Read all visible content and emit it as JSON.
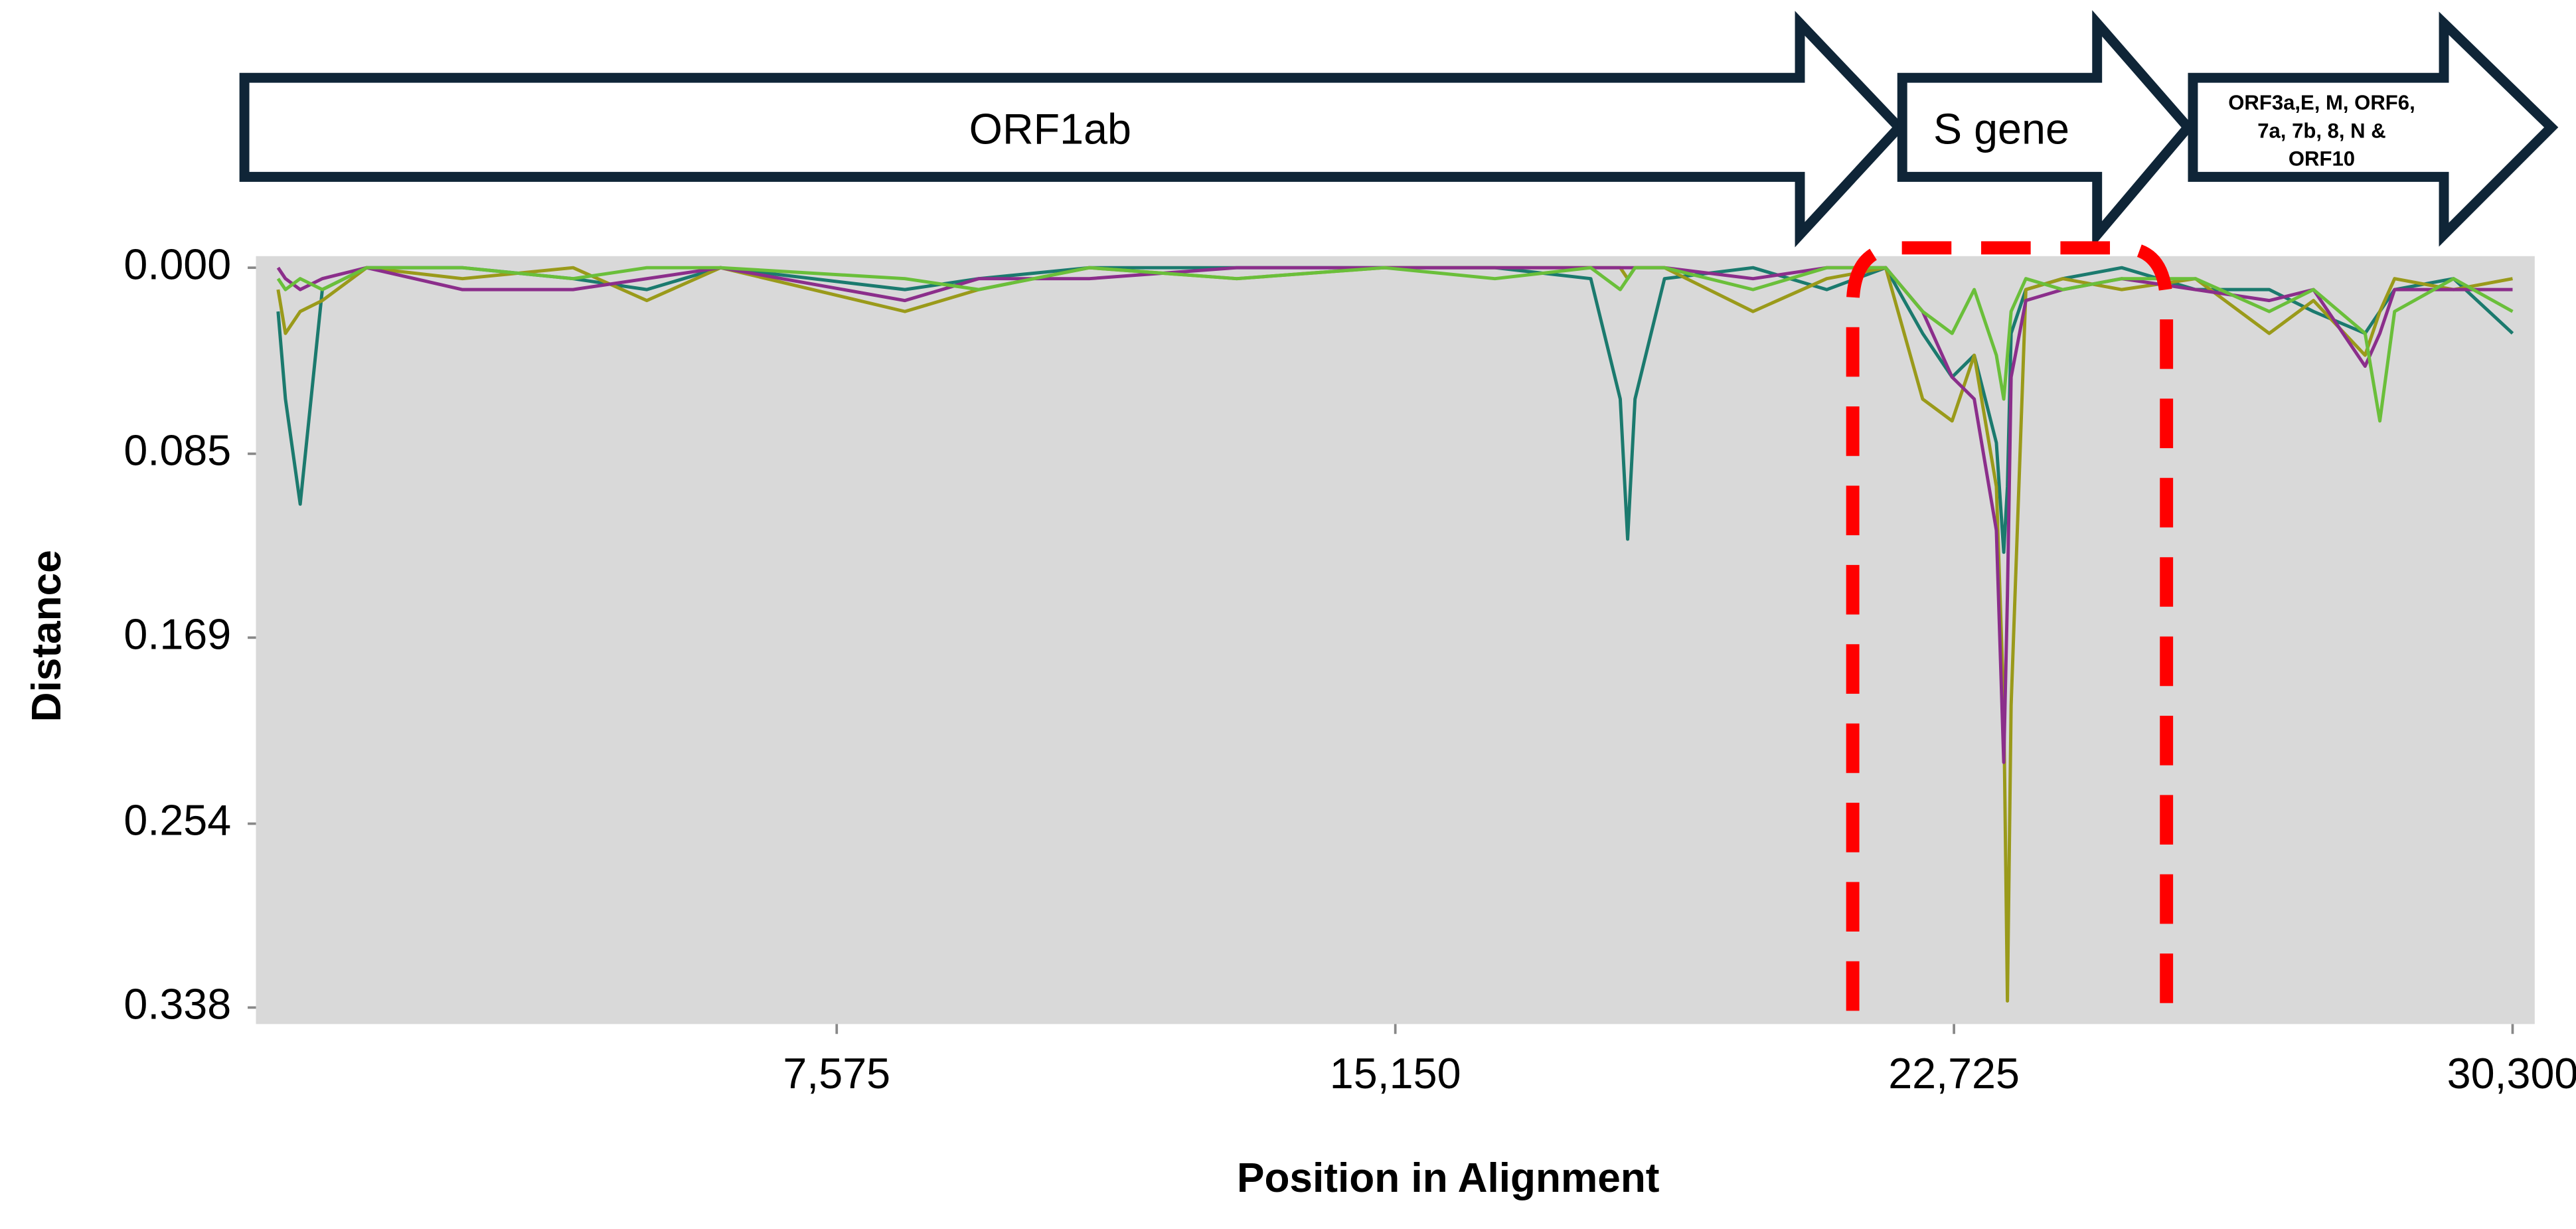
{
  "chart_data": {
    "type": "line",
    "y_axis_label": "Distance",
    "x_axis_label": "Position in Alignment",
    "genes": [
      {
        "label": "ORF1ab"
      },
      {
        "label": "S gene"
      },
      {
        "label_lines": [
          "ORF3a,E, M, ORF6,",
          "7a, 7b, 8, N &",
          "ORF10"
        ]
      }
    ],
    "xlim": [
      -300,
      30600
    ],
    "xticks": [
      {
        "value": 7575,
        "label": "7,575"
      },
      {
        "value": 15150,
        "label": "15,150"
      },
      {
        "value": 22725,
        "label": "22,725"
      },
      {
        "value": 30300,
        "label": "30,300"
      }
    ],
    "ylim": [
      0,
      0.338
    ],
    "y_inverted": true,
    "yticks": [
      {
        "value": 0,
        "label": "0.000"
      },
      0.085,
      0.169,
      0.254,
      0.338
    ],
    "grid": false,
    "x": [
      0,
      100,
      300,
      600,
      1200,
      2500,
      4000,
      5000,
      6000,
      8500,
      9500,
      11000,
      13000,
      15000,
      16500,
      17800,
      18200,
      18300,
      18400,
      18800,
      20000,
      21000,
      21800,
      22300,
      22700,
      23000,
      23300,
      23400,
      23450,
      23500,
      23700,
      24200,
      25000,
      26000,
      27000,
      27600,
      28300,
      28500,
      28700,
      29500,
      30300
    ],
    "series": [
      {
        "color": "#1b7a6e",
        "values": [
          0.02,
          0.06,
          0.108,
          0.01,
          0,
          0,
          0.005,
          0.01,
          0,
          0.01,
          0.005,
          0,
          0,
          0,
          0,
          0.005,
          0.06,
          0.124,
          0.06,
          0.005,
          0,
          0.01,
          0,
          0.03,
          0.05,
          0.04,
          0.08,
          0.13,
          0.1,
          0.03,
          0.01,
          0.005,
          0,
          0.01,
          0.01,
          0.02,
          0.03,
          0.02,
          0.01,
          0.005,
          0.03
        ]
      },
      {
        "color": "#9a9a1a",
        "values": [
          0.01,
          0.03,
          0.02,
          0.015,
          0,
          0.005,
          0,
          0.015,
          0,
          0.02,
          0.01,
          0,
          0.005,
          0,
          0,
          0,
          0,
          0.005,
          0,
          0,
          0.02,
          0.005,
          0,
          0.06,
          0.07,
          0.04,
          0.1,
          0.2,
          0.335,
          0.2,
          0.01,
          0.005,
          0.01,
          0.005,
          0.03,
          0.015,
          0.04,
          0.02,
          0.005,
          0.01,
          0.005
        ]
      },
      {
        "color": "#8b2e8b",
        "values": [
          0,
          0.005,
          0.01,
          0.005,
          0,
          0.01,
          0.01,
          0.005,
          0,
          0.015,
          0.005,
          0.005,
          0,
          0,
          0,
          0,
          0,
          0,
          0,
          0,
          0.005,
          0,
          0,
          0.02,
          0.05,
          0.06,
          0.12,
          0.226,
          0.15,
          0.05,
          0.015,
          0.01,
          0.005,
          0.01,
          0.015,
          0.01,
          0.045,
          0.03,
          0.01,
          0.01,
          0.01
        ]
      },
      {
        "color": "#6abf3a",
        "values": [
          0.005,
          0.01,
          0.005,
          0.01,
          0,
          0,
          0.005,
          0,
          0,
          0.005,
          0.01,
          0,
          0.005,
          0,
          0.005,
          0,
          0.01,
          0.005,
          0,
          0,
          0.01,
          0,
          0,
          0.02,
          0.03,
          0.01,
          0.04,
          0.06,
          0.04,
          0.02,
          0.005,
          0.01,
          0.005,
          0.005,
          0.02,
          0.01,
          0.03,
          0.07,
          0.02,
          0.005,
          0.02
        ]
      }
    ]
  }
}
